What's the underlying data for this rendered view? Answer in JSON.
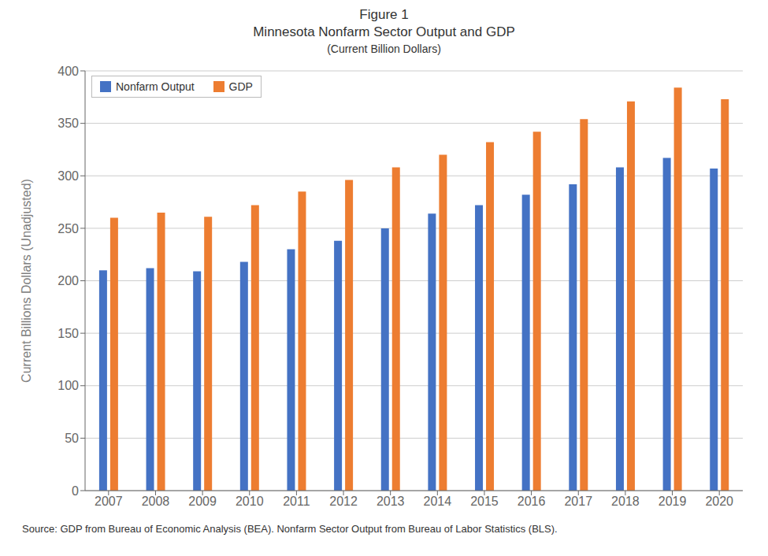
{
  "chart_data": {
    "type": "bar",
    "title": [
      "Figure 1",
      "Minnesota Nonfarm Sector Output and GDP"
    ],
    "subtitle": "(Current Billion Dollars)",
    "ylabel": "Current Billions Dollars (Unadjusted)",
    "annotations": [
      "Source: GDP from Bureau of Economic Analysis (BEA). Nonfarm Sector Output from Bureau of Labor Statistics (BLS)."
    ],
    "categories": [
      "2007",
      "2008",
      "2009",
      "2010",
      "2011",
      "2012",
      "2013",
      "2014",
      "2015",
      "2016",
      "2017",
      "2018",
      "2019",
      "2020"
    ],
    "series": [
      {
        "name": "Nonfarm Output",
        "color": "#4472C4",
        "values": [
          210,
          212,
          209,
          218,
          230,
          238,
          250,
          264,
          272,
          282,
          292,
          308,
          317,
          307
        ]
      },
      {
        "name": "GDP",
        "color": "#ED7D31",
        "values": [
          260,
          265,
          261,
          272,
          285,
          296,
          308,
          320,
          332,
          342,
          354,
          371,
          384,
          373
        ]
      }
    ],
    "ylim": [
      0,
      400
    ],
    "yticks": [
      0,
      50,
      100,
      150,
      200,
      250,
      300,
      350,
      400
    ],
    "grid": true,
    "legend": "upper left"
  }
}
